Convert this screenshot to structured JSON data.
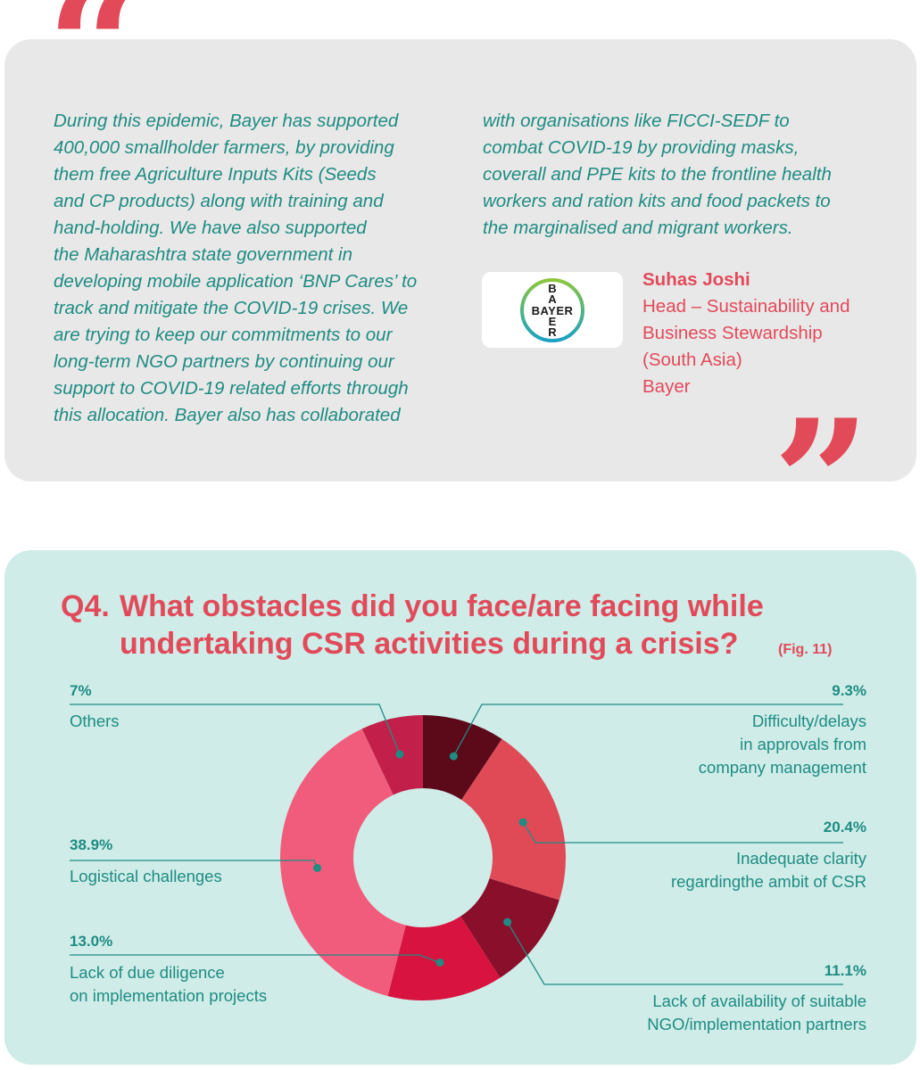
{
  "quote": {
    "left_text": "During this epidemic, Bayer has supported\n400,000 smallholder farmers, by providing\nthem free Agriculture Inputs Kits (Seeds\nand CP products) along with training and\nhand-holding. We have also supported\nthe Maharashtra state government in\ndeveloping mobile application ‘BNP Cares’ to\ntrack and mitigate the COVID-19 crises. We\nare trying to keep our commitments to our\nlong-term NGO partners by continuing our\nsupport to COVID-19 related efforts through\nthis allocation.  Bayer also has collaborated",
    "right_text": "with organisations like FICCI-SEDF to\ncombat COVID-19 by providing masks,\ncoverall and PPE kits to the frontline health\nworkers and ration kits and food packets to\nthe marginalised and migrant workers.",
    "person_name": "Suhas Joshi",
    "person_title": "Head – Sustainability and\nBusiness Stewardship\n(South Asia)\nBayer",
    "logo_text": "BAYER"
  },
  "question": {
    "number": "Q4.",
    "text": "What obstacles did you face/are facing while undertaking CSR activities during a crisis?",
    "fig_note": "(Fig. 11)"
  },
  "chart_data": {
    "type": "pie",
    "donut": true,
    "slices": [
      {
        "label": "Difficulty/delays\nin approvals from\ncompany management",
        "value": 9.3,
        "value_label": "9.3%",
        "color": "#5c0a1a"
      },
      {
        "label": "Inadequate clarity\nregardingthe ambit of CSR",
        "value": 20.4,
        "value_label": "20.4%",
        "color": "#e04a57"
      },
      {
        "label": "Lack of availability of suitable\nNGO/implementation partners",
        "value": 11.1,
        "value_label": "11.1%",
        "color": "#8a0f2a"
      },
      {
        "label": "Lack of due diligence\non implementation projects",
        "value": 13.0,
        "value_label": "13.0%",
        "color": "#d8133f"
      },
      {
        "label": "Logistical challenges",
        "value": 38.9,
        "value_label": "38.9%",
        "color": "#f25c7c"
      },
      {
        "label": "Others",
        "value": 7,
        "value_label": "7%",
        "color": "#c2204a"
      }
    ]
  },
  "colors": {
    "accent": "#e24a5a",
    "teal_text": "#1e8c83",
    "quote_bg": "#e8e8e8",
    "chart_bg": "#cfece8"
  }
}
